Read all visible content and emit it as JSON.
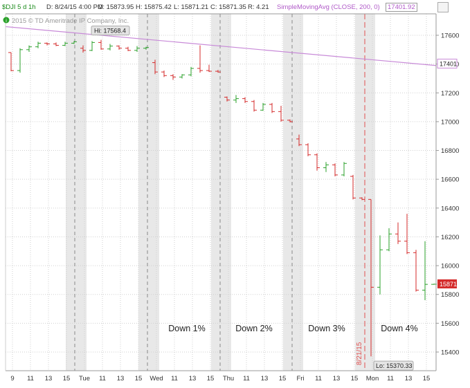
{
  "header": {
    "symbol": "$DJI 5 d 1h",
    "date_label": "D: 8/24/15 4:00 PM",
    "open_label": "O: 15873.95",
    "high_label": "H: 15875.42",
    "low_label": "L: 15871.21",
    "close_label": "C: 15871.35",
    "range_label": "R: 4.21",
    "study_label": "SimpleMovingAvg (CLOSE, 200, 0)",
    "study_value": "17401.92"
  },
  "copyright": "2015 © TD Ameritrade IP Company, Inc.",
  "colors": {
    "up": "#2aa02a",
    "down": "#d42a2a",
    "sma": "#c88ad8",
    "shade": "#e8e8e8",
    "grid": "#cfcfcf",
    "session_line": "#888888",
    "marker_line": "#e05050"
  },
  "chart_data": {
    "type": "ohlc",
    "title": "",
    "xlabel": "",
    "ylabel": "",
    "ylim": [
      15300,
      17700
    ],
    "y_ticks": [
      15400,
      15600,
      15800,
      16000,
      16200,
      16400,
      16600,
      16800,
      17000,
      17200,
      17400,
      17600
    ],
    "x_tick_labels": [
      "9",
      "11",
      "13",
      "15",
      "Tue",
      "11",
      "13",
      "15",
      "Wed",
      "11",
      "13",
      "15",
      "Thu",
      "11",
      "13",
      "15",
      "Fri",
      "11",
      "13",
      "15",
      "Mon",
      "11",
      "13",
      "15"
    ],
    "bars": [
      {
        "o": 17480,
        "h": 17480,
        "l": 17350,
        "c": 17355
      },
      {
        "o": 17355,
        "h": 17510,
        "l": 17340,
        "c": 17500
      },
      {
        "o": 17500,
        "h": 17530,
        "l": 17485,
        "c": 17520
      },
      {
        "o": 17520,
        "h": 17555,
        "l": 17510,
        "c": 17545
      },
      {
        "o": 17545,
        "h": 17550,
        "l": 17530,
        "c": 17540
      },
      {
        "o": 17540,
        "h": 17550,
        "l": 17525,
        "c": 17530
      },
      {
        "o": 17530,
        "h": 17555,
        "l": 17525,
        "c": 17545
      },
      {
        "o": 17545,
        "h": 17560,
        "l": 17540,
        "c": 17555
      },
      {
        "o": 17510,
        "h": 17530,
        "l": 17480,
        "c": 17495
      },
      {
        "o": 17495,
        "h": 17560,
        "l": 17490,
        "c": 17550
      },
      {
        "o": 17550,
        "h": 17568,
        "l": 17500,
        "c": 17505
      },
      {
        "o": 17505,
        "h": 17540,
        "l": 17495,
        "c": 17525
      },
      {
        "o": 17525,
        "h": 17530,
        "l": 17500,
        "c": 17510
      },
      {
        "o": 17510,
        "h": 17520,
        "l": 17490,
        "c": 17495
      },
      {
        "o": 17495,
        "h": 17525,
        "l": 17485,
        "c": 17510
      },
      {
        "o": 17510,
        "h": 17520,
        "l": 17500,
        "c": 17515
      },
      {
        "o": 17410,
        "h": 17430,
        "l": 17330,
        "c": 17345
      },
      {
        "o": 17345,
        "h": 17355,
        "l": 17310,
        "c": 17320
      },
      {
        "o": 17320,
        "h": 17330,
        "l": 17290,
        "c": 17310
      },
      {
        "o": 17310,
        "h": 17330,
        "l": 17300,
        "c": 17325
      },
      {
        "o": 17325,
        "h": 17380,
        "l": 17315,
        "c": 17370
      },
      {
        "o": 17370,
        "h": 17530,
        "l": 17340,
        "c": 17355
      },
      {
        "o": 17355,
        "h": 17395,
        "l": 17345,
        "c": 17350
      },
      {
        "o": 17350,
        "h": 17360,
        "l": 17340,
        "c": 17345
      },
      {
        "o": 17170,
        "h": 17175,
        "l": 17140,
        "c": 17150
      },
      {
        "o": 17150,
        "h": 17185,
        "l": 17130,
        "c": 17160
      },
      {
        "o": 17160,
        "h": 17170,
        "l": 17130,
        "c": 17140
      },
      {
        "o": 17140,
        "h": 17150,
        "l": 17070,
        "c": 17080
      },
      {
        "o": 17080,
        "h": 17130,
        "l": 17075,
        "c": 17120
      },
      {
        "o": 17120,
        "h": 17130,
        "l": 17060,
        "c": 17070
      },
      {
        "o": 17070,
        "h": 17110,
        "l": 17000,
        "c": 17010
      },
      {
        "o": 17010,
        "h": 17015,
        "l": 16995,
        "c": 17000
      },
      {
        "o": 16880,
        "h": 16910,
        "l": 16830,
        "c": 16840
      },
      {
        "o": 16840,
        "h": 16850,
        "l": 16760,
        "c": 16770
      },
      {
        "o": 16770,
        "h": 16780,
        "l": 16660,
        "c": 16680
      },
      {
        "o": 16680,
        "h": 16720,
        "l": 16650,
        "c": 16700
      },
      {
        "o": 16700,
        "h": 16710,
        "l": 16620,
        "c": 16630
      },
      {
        "o": 16630,
        "h": 16720,
        "l": 16620,
        "c": 16710
      },
      {
        "o": 16620,
        "h": 16630,
        "l": 16460,
        "c": 16470
      },
      {
        "o": 16470,
        "h": 16475,
        "l": 16455,
        "c": 16460
      },
      {
        "o": 16460,
        "h": 16460,
        "l": 15370,
        "c": 15850
      },
      {
        "o": 15850,
        "h": 16210,
        "l": 15800,
        "c": 16110
      },
      {
        "o": 16110,
        "h": 16260,
        "l": 16100,
        "c": 16220
      },
      {
        "o": 16220,
        "h": 16300,
        "l": 16150,
        "c": 16170
      },
      {
        "o": 16170,
        "h": 16360,
        "l": 16080,
        "c": 16090
      },
      {
        "o": 16090,
        "h": 16110,
        "l": 15820,
        "c": 15830
      },
      {
        "o": 15830,
        "h": 16170,
        "l": 15760,
        "c": 15870
      },
      {
        "o": 15870,
        "h": 15875,
        "l": 15870,
        "c": 15871
      }
    ],
    "sma_start": 17660,
    "sma_end": 17390,
    "current_price_label": "15871",
    "sma_price_label": "17401",
    "high_label": "Hi: 17568.4",
    "low_label": "Lo: 15370.33",
    "date_marker": "8/21/15",
    "annotations": [
      "Down 1%",
      "Down 2%",
      "Down 3%",
      "Down 4%"
    ]
  }
}
